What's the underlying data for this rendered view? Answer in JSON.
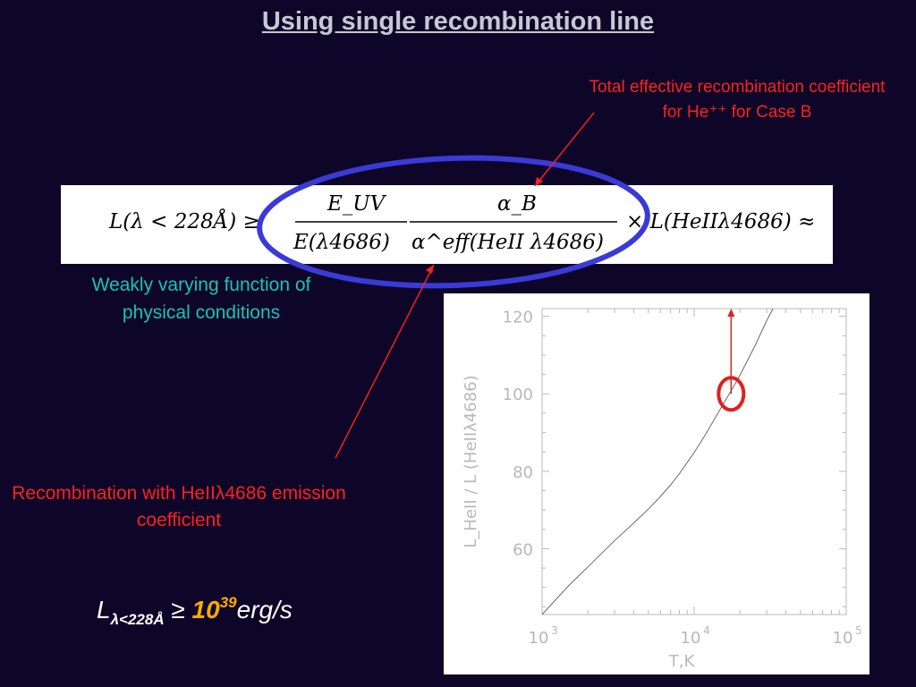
{
  "slide": {
    "title": "Using single recombination line",
    "note_top": "Total effective recombination coefficient for He⁺⁺ for Case B",
    "note_weak": "Weakly varying function of physical conditions",
    "note_bottom": "Recombination with HeIIλ4686 emission coefficient",
    "colors": {
      "background": "#0e0628",
      "red": "#ff2020",
      "teal": "#19c4b0",
      "ellipse": "#3a3ad8",
      "orange": "#ffaa00"
    }
  },
  "formula": {
    "lhs": "L(λ < 228Å) ≥",
    "num1": "E_UV",
    "den1": "E(λ4686)",
    "num2": "α_B",
    "den2": "α^eff(HeII λ4686)",
    "rhs": "× L(HeIIλ4686) ≈"
  },
  "result": {
    "lhs": "L",
    "sub": "λ<228Å",
    "op": "≥",
    "base": "10",
    "exp": "39",
    "unit": "erg/s"
  },
  "chart_data": {
    "type": "line",
    "title": "",
    "xlabel": "T,K",
    "ylabel": "L_HeII / L (HeIIλ4686)",
    "xscale": "log",
    "xlim": [
      1000,
      100000
    ],
    "ylim": [
      43,
      122
    ],
    "x_ticks": [
      1000,
      10000,
      100000
    ],
    "x_tick_labels": [
      "10",
      "10",
      "10"
    ],
    "x_tick_exponents": [
      "3",
      "4",
      "5"
    ],
    "y_ticks": [
      60,
      80,
      100,
      120
    ],
    "y_tick_labels": [
      "60",
      "80",
      "100",
      "120"
    ],
    "series": [
      {
        "x": [
          1000,
          1500,
          2000,
          3000,
          4000,
          5000,
          6000,
          7000,
          8000,
          10000,
          12000,
          14000,
          16000,
          18000,
          20000,
          25000,
          30000,
          33000
        ],
        "y": [
          43,
          50.5,
          55.3,
          62.1,
          66.6,
          70.2,
          73.5,
          76.5,
          79.4,
          84.8,
          89.8,
          94.3,
          98.2,
          101.6,
          104.8,
          112.2,
          118.9,
          122
        ]
      }
    ],
    "annotation": {
      "x": 17500,
      "y_from": 100,
      "y_to": 122,
      "marker": "circle"
    },
    "grid": false
  }
}
